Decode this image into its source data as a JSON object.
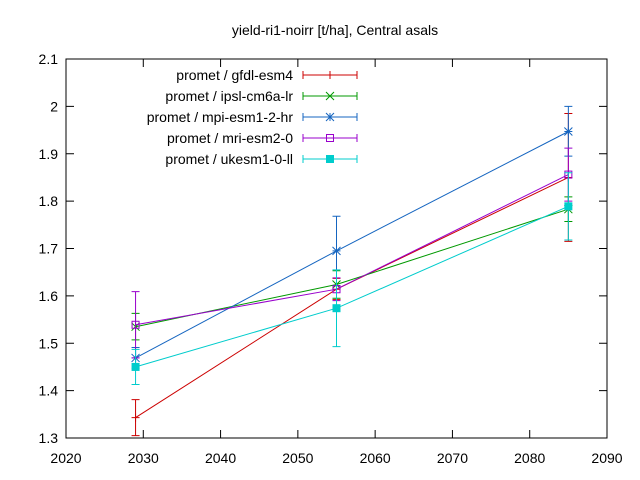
{
  "chart_data": {
    "type": "line",
    "title": "yield-ri1-noirr [t/ha], Central asals",
    "xlabel": "",
    "ylabel": "",
    "xlim": [
      2020,
      2090
    ],
    "ylim": [
      1.3,
      2.1
    ],
    "xticks": [
      2020,
      2030,
      2040,
      2050,
      2060,
      2070,
      2080,
      2090
    ],
    "yticks": [
      1.3,
      1.4,
      1.5,
      1.6,
      1.7,
      1.8,
      1.9,
      2,
      2.1
    ],
    "grid": false,
    "legend_position": "top-left",
    "series": [
      {
        "name": "promet / gfdl-esm4",
        "color": "#cc0000",
        "marker": "plus",
        "points": [
          {
            "x": 2029,
            "y": 1.343,
            "err_low": 1.305,
            "err_high": 1.381
          },
          {
            "x": 2055,
            "y": 1.614,
            "err_low": 1.592,
            "err_high": 1.637
          },
          {
            "x": 2085,
            "y": 1.85,
            "err_low": 1.715,
            "err_high": 1.985
          }
        ]
      },
      {
        "name": "promet / ipsl-cm6a-lr",
        "color": "#009900",
        "marker": "x",
        "points": [
          {
            "x": 2029,
            "y": 1.535,
            "err_low": 1.507,
            "err_high": 1.563
          },
          {
            "x": 2055,
            "y": 1.624,
            "err_low": 1.595,
            "err_high": 1.653
          },
          {
            "x": 2085,
            "y": 1.783,
            "err_low": 1.757,
            "err_high": 1.809
          }
        ]
      },
      {
        "name": "promet / mpi-esm1-2-hr",
        "color": "#1565c0",
        "marker": "star",
        "points": [
          {
            "x": 2029,
            "y": 1.469,
            "err_low": 1.447,
            "err_high": 1.491
          },
          {
            "x": 2055,
            "y": 1.695,
            "err_low": 1.622,
            "err_high": 1.768
          },
          {
            "x": 2085,
            "y": 1.947,
            "err_low": 1.895,
            "err_high": 2.0
          }
        ]
      },
      {
        "name": "promet / mri-esm2-0",
        "color": "#9900cc",
        "marker": "square-open",
        "points": [
          {
            "x": 2029,
            "y": 1.539,
            "err_low": 1.469,
            "err_high": 1.609
          },
          {
            "x": 2055,
            "y": 1.614,
            "err_low": 1.59,
            "err_high": 1.638
          },
          {
            "x": 2085,
            "y": 1.856,
            "err_low": 1.8,
            "err_high": 1.912
          }
        ]
      },
      {
        "name": "promet / ukesm1-0-ll",
        "color": "#00cccc",
        "marker": "square-filled",
        "points": [
          {
            "x": 2029,
            "y": 1.45,
            "err_low": 1.413,
            "err_high": 1.487
          },
          {
            "x": 2055,
            "y": 1.574,
            "err_low": 1.493,
            "err_high": 1.655
          },
          {
            "x": 2085,
            "y": 1.789,
            "err_low": 1.718,
            "err_high": 1.86
          }
        ]
      }
    ]
  }
}
